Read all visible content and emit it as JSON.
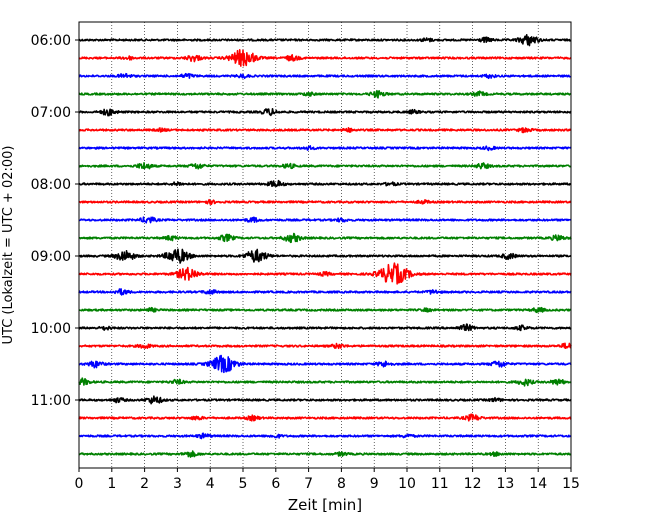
{
  "chart_data": {
    "type": "line",
    "title": "",
    "xlabel": "Zeit  [min]",
    "ylabel": "UTC (Lokalzeit = UTC + 02:00)",
    "xlim": [
      0,
      15
    ],
    "x_ticks": [
      0,
      1,
      2,
      3,
      4,
      5,
      6,
      7,
      8,
      9,
      10,
      11,
      12,
      13,
      14,
      15
    ],
    "y_ticks": [
      {
        "label": "06:00",
        "trace": 0
      },
      {
        "label": "07:00",
        "trace": 4
      },
      {
        "label": "08:00",
        "trace": 8
      },
      {
        "label": "09:00",
        "trace": 12
      },
      {
        "label": "10:00",
        "trace": 16
      },
      {
        "label": "11:00",
        "trace": 20
      }
    ],
    "grid": "vertical-dotted",
    "trace_interval_min": 15,
    "start_utc": "06:00",
    "colors": [
      "#000000",
      "#ff0000",
      "#0000ff",
      "#008000"
    ],
    "series": [
      {
        "start": "06:00",
        "color": "#000000",
        "events": [
          [
            13.7,
            5
          ],
          [
            12.4,
            2
          ],
          [
            10.6,
            1.5
          ]
        ]
      },
      {
        "start": "06:15",
        "color": "#ff0000",
        "events": [
          [
            5.0,
            8
          ],
          [
            3.5,
            3
          ],
          [
            6.5,
            2.5
          ],
          [
            1.5,
            1.5
          ]
        ]
      },
      {
        "start": "06:30",
        "color": "#0000ff",
        "events": [
          [
            1.4,
            2
          ],
          [
            3.3,
            2
          ],
          [
            5.0,
            1.5
          ],
          [
            12.5,
            1.5
          ]
        ]
      },
      {
        "start": "06:45",
        "color": "#008000",
        "events": [
          [
            9.1,
            3
          ],
          [
            12.2,
            2
          ],
          [
            7.0,
            1.5
          ]
        ]
      },
      {
        "start": "07:00",
        "color": "#000000",
        "events": [
          [
            0.9,
            3
          ],
          [
            5.8,
            3
          ],
          [
            10.2,
            1.5
          ]
        ]
      },
      {
        "start": "07:15",
        "color": "#ff0000",
        "events": [
          [
            13.6,
            2
          ],
          [
            8.2,
            1.5
          ],
          [
            2.5,
            1.2
          ]
        ]
      },
      {
        "start": "07:30",
        "color": "#0000ff",
        "events": [
          [
            7.0,
            1.5
          ],
          [
            12.5,
            1.5
          ]
        ]
      },
      {
        "start": "07:45",
        "color": "#008000",
        "events": [
          [
            2.0,
            3
          ],
          [
            3.6,
            2.5
          ],
          [
            6.4,
            2
          ],
          [
            12.3,
            2.5
          ]
        ]
      },
      {
        "start": "08:00",
        "color": "#000000",
        "events": [
          [
            6.0,
            3
          ],
          [
            3.0,
            1.5
          ],
          [
            9.5,
            1.5
          ]
        ]
      },
      {
        "start": "08:15",
        "color": "#ff0000",
        "events": [
          [
            4.0,
            1.5
          ],
          [
            10.5,
            1.5
          ]
        ]
      },
      {
        "start": "08:30",
        "color": "#0000ff",
        "events": [
          [
            2.1,
            3
          ],
          [
            5.3,
            2
          ],
          [
            8.0,
            1.5
          ]
        ]
      },
      {
        "start": "08:45",
        "color": "#008000",
        "events": [
          [
            6.5,
            4
          ],
          [
            4.5,
            3
          ],
          [
            2.8,
            2
          ],
          [
            14.6,
            2.5
          ]
        ]
      },
      {
        "start": "09:00",
        "color": "#000000",
        "events": [
          [
            1.4,
            5
          ],
          [
            3.0,
            7
          ],
          [
            5.4,
            6
          ],
          [
            13.1,
            2.5
          ]
        ]
      },
      {
        "start": "09:15",
        "color": "#ff0000",
        "events": [
          [
            3.3,
            6
          ],
          [
            9.6,
            10
          ],
          [
            7.5,
            1.5
          ]
        ]
      },
      {
        "start": "09:30",
        "color": "#0000ff",
        "events": [
          [
            1.3,
            2.5
          ],
          [
            4.0,
            2
          ],
          [
            10.8,
            1.8
          ]
        ]
      },
      {
        "start": "09:45",
        "color": "#008000",
        "events": [
          [
            2.2,
            1.5
          ],
          [
            10.6,
            1.2
          ],
          [
            14.0,
            2
          ]
        ]
      },
      {
        "start": "10:00",
        "color": "#000000",
        "events": [
          [
            11.8,
            3
          ],
          [
            13.5,
            2
          ],
          [
            0.8,
            1.5
          ]
        ]
      },
      {
        "start": "10:15",
        "color": "#ff0000",
        "events": [
          [
            2.0,
            2
          ],
          [
            7.9,
            2
          ],
          [
            14.9,
            2.5
          ]
        ]
      },
      {
        "start": "10:30",
        "color": "#0000ff",
        "events": [
          [
            4.4,
            8
          ],
          [
            0.5,
            3
          ],
          [
            9.3,
            2.5
          ],
          [
            12.8,
            3
          ]
        ]
      },
      {
        "start": "10:45",
        "color": "#008000",
        "events": [
          [
            0.1,
            3
          ],
          [
            13.6,
            3
          ],
          [
            14.6,
            2.5
          ],
          [
            3.0,
            2
          ]
        ]
      },
      {
        "start": "11:00",
        "color": "#000000",
        "events": [
          [
            2.3,
            3.5
          ],
          [
            1.2,
            2
          ],
          [
            12.7,
            1.5
          ]
        ]
      },
      {
        "start": "11:15",
        "color": "#ff0000",
        "events": [
          [
            12.0,
            3
          ],
          [
            5.3,
            2
          ],
          [
            3.6,
            1.5
          ]
        ]
      },
      {
        "start": "11:30",
        "color": "#0000ff",
        "events": [
          [
            3.8,
            2
          ],
          [
            10.0,
            1.5
          ],
          [
            6.0,
            1.5
          ]
        ]
      },
      {
        "start": "11:45",
        "color": "#008000",
        "events": [
          [
            3.4,
            2.5
          ],
          [
            8.0,
            1.5
          ],
          [
            12.7,
            1.5
          ]
        ]
      }
    ]
  }
}
